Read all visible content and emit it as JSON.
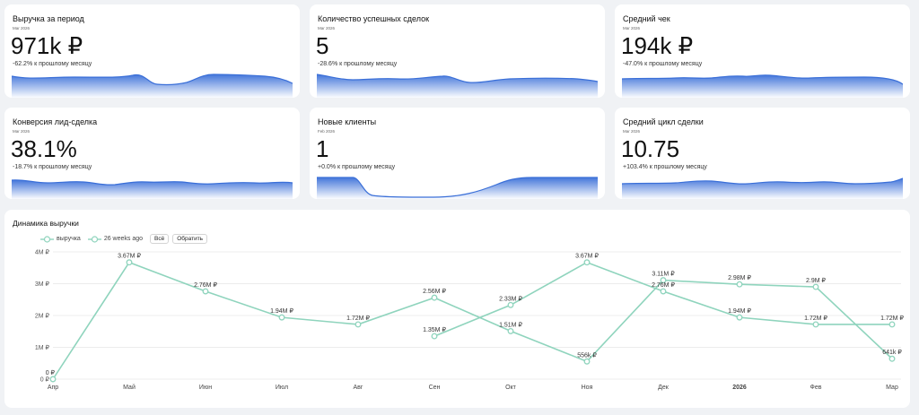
{
  "kpis": [
    {
      "title": "Выручка за период",
      "date": "Mar 2026",
      "value": "971k ₽",
      "delta": "-62.2% к прошлому месяцу"
    },
    {
      "title": "Количество успешных сделок",
      "date": "Mar 2026",
      "value": "5",
      "delta": "-28.6% к прошлому месяцу"
    },
    {
      "title": "Средний чек",
      "date": "Mar 2026",
      "value": "194k ₽",
      "delta": "-47.0% к прошлому месяцу"
    },
    {
      "title": "Конверсия лид-сделка",
      "date": "Mar 2026",
      "value": "38.1%",
      "delta": "-18.7% к прошлому месяцу"
    },
    {
      "title": "Новые клиенты",
      "date": "Feb 2026",
      "value": "1",
      "delta": "+0.0% к прошлому месяцу"
    },
    {
      "title": "Средний цикл сделки",
      "date": "Mar 2026",
      "value": "10.75",
      "delta": "+103.4% к прошлому месяцу"
    }
  ],
  "colors": {
    "spark_line": "#3a6fd8",
    "spark_fill_top": "#3a6fd8",
    "series": "#8fd4bd",
    "grid": "#ececec"
  },
  "chart": {
    "title": "Динамика выручки",
    "legend": {
      "series1": "выручка",
      "series2": "26 weeks ago",
      "all_button": "Всё",
      "invert_button": "Обратить"
    }
  },
  "chart_data": {
    "type": "line",
    "categories": [
      "Апр",
      "Май",
      "Июн",
      "Июл",
      "Авг",
      "Сен",
      "Окт",
      "Ноя",
      "Дек",
      "2026",
      "Фев",
      "Мар"
    ],
    "y_ticks": [
      "0 ₽",
      "1M ₽",
      "2M ₽",
      "3M ₽",
      "4M ₽"
    ],
    "ylim": [
      0,
      4000000
    ],
    "grid": true,
    "series": [
      {
        "name": "выручка",
        "values": [
          0,
          3670000,
          2760000,
          1940000,
          1720000,
          2560000,
          1510000,
          556000,
          3110000,
          2980000,
          2900000,
          641000
        ],
        "labels": [
          "0 ₽",
          "3.67M ₽",
          "2.76M ₽",
          "1.94M ₽",
          "1.72M ₽",
          "2.56M ₽",
          "1.51M ₽",
          "556k ₽",
          "3.11M ₽",
          "2.98M ₽",
          "2.9M ₽",
          "641k ₽"
        ]
      },
      {
        "name": "26 weeks ago",
        "values": [
          null,
          null,
          null,
          null,
          null,
          1350000,
          2330000,
          3670000,
          2760000,
          1940000,
          1720000,
          1720000
        ],
        "labels": [
          null,
          null,
          null,
          null,
          null,
          "1.35M ₽",
          "2.33M ₽",
          "3.67M ₽",
          "2.76M ₽",
          "1.94M ₽",
          "1.72M ₽",
          "1.72M ₽"
        ]
      }
    ]
  }
}
